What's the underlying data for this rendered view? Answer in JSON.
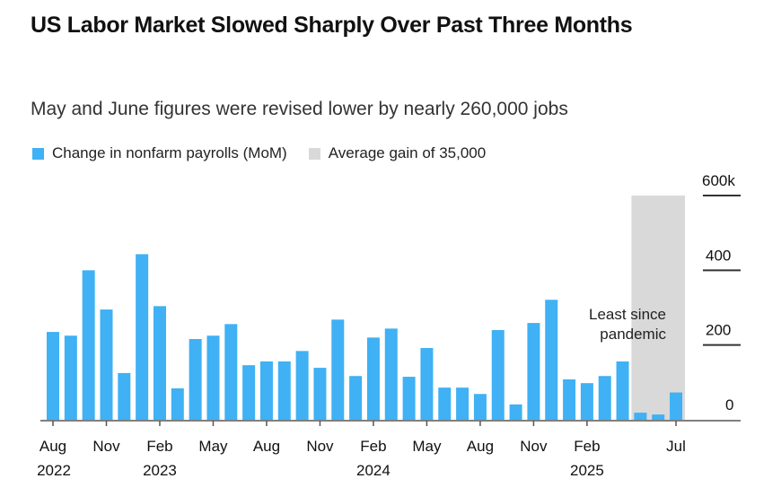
{
  "title": "US Labor Market Slowed Sharply Over Past Three Months",
  "subtitle": "May and June figures were revised lower by nearly 260,000 jobs",
  "chart_data": {
    "type": "bar",
    "legend": [
      {
        "label": "Change in nonfarm payrolls (MoM)",
        "color": "#3fb1f4"
      },
      {
        "label": "Average gain of 35,000",
        "color": "#d9d9d9"
      }
    ],
    "legend_placement": "top-left",
    "months": [
      "Aug 2022",
      "Sep 2022",
      "Oct 2022",
      "Nov 2022",
      "Dec 2022",
      "Jan 2023",
      "Feb 2023",
      "Mar 2023",
      "Apr 2023",
      "May 2023",
      "Jun 2023",
      "Jul 2023",
      "Aug 2023",
      "Sep 2023",
      "Oct 2023",
      "Nov 2023",
      "Dec 2023",
      "Jan 2024",
      "Feb 2024",
      "Mar 2024",
      "Apr 2024",
      "May 2024",
      "Jun 2024",
      "Jul 2024",
      "Aug 2024",
      "Sep 2024",
      "Oct 2024",
      "Nov 2024",
      "Dec 2024",
      "Jan 2025",
      "Feb 2025",
      "Mar 2025",
      "Apr 2025",
      "May 2025",
      "Jun 2025",
      "Jul 2025"
    ],
    "values": [
      235,
      225,
      400,
      295,
      125,
      443,
      304,
      84,
      216,
      225,
      256,
      146,
      156,
      156,
      184,
      139,
      268,
      117,
      220,
      244,
      115,
      192,
      86,
      86,
      69,
      240,
      41,
      259,
      321,
      108,
      98,
      117,
      156,
      19,
      14,
      73
    ],
    "shaded_range": [
      "May 2025",
      "Jul 2025"
    ],
    "x_tick_labels": [
      {
        "month": "Aug 2022",
        "label": "Aug",
        "year": "2022"
      },
      {
        "month": "Nov 2022",
        "label": "Nov",
        "year": ""
      },
      {
        "month": "Feb 2023",
        "label": "Feb",
        "year": "2023"
      },
      {
        "month": "May 2023",
        "label": "May",
        "year": ""
      },
      {
        "month": "Aug 2023",
        "label": "Aug",
        "year": ""
      },
      {
        "month": "Nov 2023",
        "label": "Nov",
        "year": ""
      },
      {
        "month": "Feb 2024",
        "label": "Feb",
        "year": "2024"
      },
      {
        "month": "May 2024",
        "label": "May",
        "year": ""
      },
      {
        "month": "Aug 2024",
        "label": "Aug",
        "year": ""
      },
      {
        "month": "Nov 2024",
        "label": "Nov",
        "year": ""
      },
      {
        "month": "Feb 2025",
        "label": "Feb",
        "year": "2025"
      },
      {
        "month": "Jul 2025",
        "label": "Jul",
        "year": ""
      }
    ],
    "y_ticks": [
      {
        "value": 0,
        "label": "0"
      },
      {
        "value": 200,
        "label": "200"
      },
      {
        "value": 400,
        "label": "400"
      },
      {
        "value": 600,
        "label": "600k"
      }
    ],
    "ylim": [
      0,
      600
    ],
    "annotation": [
      "Least since",
      "pandemic"
    ],
    "grid": "y ticks only, right side",
    "bar_color": "#3fb1f4",
    "shade_color": "#d9d9d9"
  }
}
